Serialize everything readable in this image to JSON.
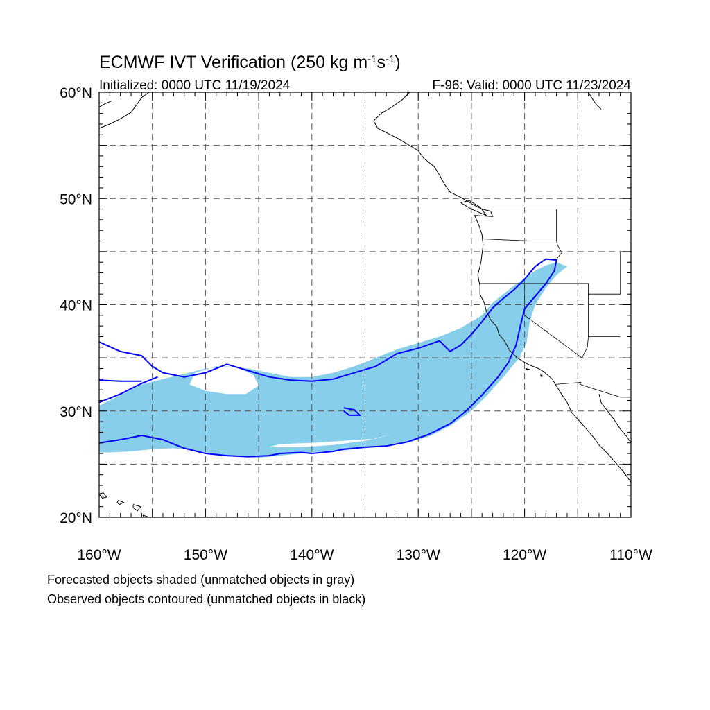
{
  "title": {
    "main": "ECMWF IVT Verification (250 kg m",
    "exp1": "-1",
    "mid": "s",
    "exp2": "-1",
    "close": ")"
  },
  "subtitle_left": "Initialized: 0000 UTC 11/19/2024",
  "subtitle_right": "F-96: Valid: 0000 UTC 11/23/2024",
  "lat_labels": [
    {
      "lat": 60,
      "text": "60°N"
    },
    {
      "lat": 50,
      "text": "50°N"
    },
    {
      "lat": 40,
      "text": "40°N"
    },
    {
      "lat": 30,
      "text": "30°N"
    },
    {
      "lat": 20,
      "text": "20°N"
    }
  ],
  "lon_labels": [
    {
      "lon": -160,
      "text": "160°W"
    },
    {
      "lon": -150,
      "text": "150°W"
    },
    {
      "lon": -140,
      "text": "140°W"
    },
    {
      "lon": -130,
      "text": "130°W"
    },
    {
      "lon": -120,
      "text": "120°W"
    },
    {
      "lon": -110,
      "text": "110°W"
    }
  ],
  "extent": {
    "lon_min": -160,
    "lon_max": -110,
    "lat_min": 20,
    "lat_max": 60
  },
  "grid_spacing_deg": 5,
  "colors": {
    "forecast_fill": "#87ceeb",
    "observed_contour": "#0000ff",
    "coastline": "#000000",
    "gridline": "#555555"
  },
  "legend_lines": [
    "Forecasted objects shaded (unmatched objects in gray)",
    "Observed objects contoured (unmatched objects in black)"
  ],
  "forecast_object": {
    "outer": [
      [
        -160,
        30.5
      ],
      [
        -158,
        31.5
      ],
      [
        -156,
        32.5
      ],
      [
        -154,
        33
      ],
      [
        -152,
        33.5
      ],
      [
        -150,
        34
      ],
      [
        -148,
        34.2
      ],
      [
        -146,
        34
      ],
      [
        -144,
        33.6
      ],
      [
        -142,
        33.2
      ],
      [
        -140,
        33.2
      ],
      [
        -138,
        33.6
      ],
      [
        -136,
        34.2
      ],
      [
        -134,
        35
      ],
      [
        -132,
        35.8
      ],
      [
        -130,
        36.4
      ],
      [
        -128,
        37
      ],
      [
        -126,
        37.8
      ],
      [
        -124,
        39
      ],
      [
        -123,
        40.2
      ],
      [
        -122,
        41
      ],
      [
        -121,
        41.8
      ],
      [
        -120,
        42.5
      ],
      [
        -119,
        43.2
      ],
      [
        -118,
        43.7
      ],
      [
        -117,
        44
      ],
      [
        -116,
        43.6
      ],
      [
        -117,
        42.8
      ],
      [
        -118,
        41.6
      ],
      [
        -119,
        40
      ],
      [
        -119.5,
        38.5
      ],
      [
        -119.8,
        36.5
      ],
      [
        -120.5,
        35
      ],
      [
        -122,
        33.2
      ],
      [
        -123.5,
        31.5
      ],
      [
        -125,
        30
      ],
      [
        -127,
        28.6
      ],
      [
        -129,
        27.6
      ],
      [
        -131,
        27
      ],
      [
        -133,
        26.7
      ],
      [
        -135,
        26.5
      ],
      [
        -137,
        26.3
      ],
      [
        -139,
        26.2
      ],
      [
        -141,
        26
      ],
      [
        -143,
        25.8
      ],
      [
        -145,
        25.6
      ],
      [
        -147,
        25.7
      ],
      [
        -149,
        25.9
      ],
      [
        -151,
        26.3
      ],
      [
        -153,
        26.5
      ],
      [
        -155,
        26.4
      ],
      [
        -157,
        26.2
      ],
      [
        -159,
        26.1
      ],
      [
        -160,
        26.1
      ]
    ],
    "holes": [
      [
        [
          -151,
          33.6
        ],
        [
          -149,
          34.2
        ],
        [
          -147,
          34.1
        ],
        [
          -145.5,
          33.4
        ],
        [
          -145,
          32.4
        ],
        [
          -146.2,
          31.6
        ],
        [
          -148,
          31.6
        ],
        [
          -150,
          31.9
        ],
        [
          -151.5,
          32.5
        ]
      ],
      [
        [
          -144,
          26.6
        ],
        [
          -141,
          26.6
        ],
        [
          -138,
          26.8
        ],
        [
          -135,
          27.2
        ],
        [
          -132.5,
          27.8
        ],
        [
          -134,
          27.4
        ],
        [
          -137,
          27.2
        ],
        [
          -140,
          27
        ],
        [
          -143,
          26.9
        ]
      ]
    ]
  },
  "observed_contours": [
    [
      [
        -160,
        36.5
      ],
      [
        -158,
        35.6
      ],
      [
        -156,
        35.2
      ],
      [
        -155,
        34.2
      ],
      [
        -154,
        33.6
      ],
      [
        -152,
        33.2
      ],
      [
        -150,
        33.6
      ],
      [
        -148,
        34.4
      ],
      [
        -146,
        33.8
      ],
      [
        -144,
        33.2
      ],
      [
        -142,
        32.9
      ],
      [
        -140,
        32.8
      ],
      [
        -138,
        33
      ],
      [
        -136,
        33.6
      ],
      [
        -134,
        34.2
      ],
      [
        -132,
        35.4
      ],
      [
        -130,
        35.9
      ],
      [
        -128,
        36.6
      ],
      [
        -127,
        35.6
      ],
      [
        -126,
        36.2
      ],
      [
        -125,
        37.2
      ],
      [
        -124,
        38.4
      ],
      [
        -123,
        39.7
      ],
      [
        -122,
        40.6
      ],
      [
        -121,
        41.4
      ],
      [
        -120,
        42.4
      ],
      [
        -119,
        43.6
      ],
      [
        -118,
        44.3
      ],
      [
        -117,
        44.2
      ],
      [
        -117.2,
        43.2
      ],
      [
        -118,
        42
      ],
      [
        -119,
        40.8
      ],
      [
        -120,
        39.6
      ],
      [
        -120.4,
        38
      ],
      [
        -120.8,
        36.2
      ],
      [
        -121.5,
        34.6
      ],
      [
        -122.5,
        33.2
      ],
      [
        -124,
        31.5
      ],
      [
        -125.5,
        30
      ],
      [
        -127,
        28.8
      ],
      [
        -129,
        27.8
      ],
      [
        -131,
        27.1
      ],
      [
        -133,
        26.7
      ],
      [
        -135,
        26.6
      ],
      [
        -137,
        26.4
      ],
      [
        -138,
        26.2
      ],
      [
        -139,
        26.1
      ],
      [
        -140,
        26
      ],
      [
        -141,
        26.1
      ],
      [
        -143,
        26
      ],
      [
        -144,
        25.8
      ],
      [
        -146,
        25.7
      ],
      [
        -148,
        25.8
      ],
      [
        -150,
        26
      ],
      [
        -152,
        26.5
      ],
      [
        -154,
        27.3
      ],
      [
        -156,
        27.7
      ],
      [
        -158,
        27.3
      ],
      [
        -160,
        27
      ]
    ],
    [
      [
        -160,
        30.8
      ],
      [
        -158,
        31.6
      ],
      [
        -156,
        32.6
      ],
      [
        -154.5,
        33.2
      ]
    ],
    [
      [
        -160,
        32.9
      ],
      [
        -158,
        32.8
      ],
      [
        -156,
        32.8
      ]
    ],
    [
      [
        -137,
        30.3
      ],
      [
        -136,
        30.1
      ],
      [
        -135.5,
        29.6
      ],
      [
        -136.5,
        29.6
      ],
      [
        -137,
        30
      ]
    ]
  ],
  "coastlines": [
    [
      [
        -130.8,
        60
      ],
      [
        -131.5,
        59.3
      ],
      [
        -132.5,
        58.6
      ],
      [
        -133.5,
        58
      ],
      [
        -134.2,
        57.3
      ],
      [
        -133.8,
        56.6
      ],
      [
        -132,
        55.7
      ],
      [
        -131,
        55.1
      ],
      [
        -130,
        54.5
      ],
      [
        -129.5,
        53.8
      ],
      [
        -128.5,
        53
      ],
      [
        -128,
        52.2
      ],
      [
        -127.5,
        51.3
      ],
      [
        -127,
        50.6
      ],
      [
        -126,
        50.1
      ],
      [
        -124.8,
        49.4
      ],
      [
        -124,
        49
      ],
      [
        -123.2,
        48.8
      ],
      [
        -123,
        48.3
      ],
      [
        -124.7,
        48.4
      ],
      [
        -124.3,
        47.5
      ],
      [
        -124,
        46.6
      ],
      [
        -123.9,
        45.6
      ],
      [
        -124,
        44.8
      ],
      [
        -124.1,
        44
      ],
      [
        -124.4,
        42.8
      ],
      [
        -124.2,
        41.8
      ],
      [
        -124.2,
        41
      ],
      [
        -123.8,
        40.2
      ],
      [
        -123.6,
        39.4
      ],
      [
        -123.2,
        38.6
      ],
      [
        -122.6,
        37.9
      ],
      [
        -122.4,
        37.2
      ],
      [
        -121.9,
        36.6
      ],
      [
        -121.4,
        35.7
      ],
      [
        -120.7,
        35
      ],
      [
        -119.7,
        34.4
      ],
      [
        -118.7,
        34
      ],
      [
        -118.2,
        33.7
      ],
      [
        -117.4,
        33
      ],
      [
        -117.1,
        32.5
      ],
      [
        -116.6,
        31.7
      ],
      [
        -116,
        30.8
      ],
      [
        -115.6,
        29.9
      ],
      [
        -114.8,
        29
      ],
      [
        -114.2,
        28.3
      ],
      [
        -113.5,
        27.5
      ],
      [
        -113,
        26.8
      ],
      [
        -112.2,
        26
      ],
      [
        -111.5,
        25.2
      ],
      [
        -110.8,
        24.4
      ],
      [
        -110,
        23.3
      ]
    ],
    [
      [
        -113,
        31.6
      ],
      [
        -112.8,
        30.8
      ],
      [
        -112.2,
        30
      ],
      [
        -111.6,
        29.2
      ],
      [
        -111,
        28.3
      ],
      [
        -110.4,
        27.6
      ],
      [
        -110,
        27
      ]
    ],
    [
      [
        -160,
        56.6
      ],
      [
        -159,
        57
      ],
      [
        -158,
        57.5
      ],
      [
        -157,
        58.1
      ],
      [
        -156.5,
        58.8
      ],
      [
        -156,
        59.5
      ],
      [
        -155.3,
        60
      ]
    ],
    [
      [
        -160,
        58.6
      ],
      [
        -159.5,
        58.9
      ],
      [
        -158.8,
        59.2
      ]
    ],
    [
      [
        -114,
        60
      ],
      [
        -113.7,
        59.5
      ],
      [
        -113.3,
        58.9
      ],
      [
        -112.8,
        58.4
      ]
    ],
    [
      [
        -160,
        22.2
      ],
      [
        -159.6,
        22.3
      ],
      [
        -159.3,
        21.9
      ],
      [
        -159.7,
        21.8
      ],
      [
        -160,
        22.2
      ]
    ],
    [
      [
        -158.2,
        21.6
      ],
      [
        -157.7,
        21.4
      ],
      [
        -158.1,
        21.2
      ],
      [
        -158.3,
        21.4
      ],
      [
        -158.2,
        21.6
      ]
    ],
    [
      [
        -156.8,
        21.2
      ],
      [
        -156.1,
        21
      ],
      [
        -156.4,
        20.6
      ],
      [
        -156.8,
        20.9
      ],
      [
        -156.8,
        21.2
      ]
    ],
    [
      [
        -155.9,
        20.2
      ],
      [
        -155,
        19.9
      ],
      [
        -155.5,
        19.5
      ],
      [
        -155.9,
        20.2
      ]
    ],
    [
      [
        -126,
        49.6
      ],
      [
        -125,
        49
      ],
      [
        -123.6,
        48.4
      ],
      [
        -124.2,
        49.2
      ],
      [
        -125.2,
        49.8
      ],
      [
        -126,
        49.6
      ]
    ],
    [
      [
        -119.9,
        34
      ],
      [
        -119.5,
        33.9
      ],
      [
        -119.8,
        33.9
      ],
      [
        -119.9,
        34
      ]
    ],
    [
      [
        -118.5,
        33.4
      ],
      [
        -118.3,
        33.3
      ],
      [
        -118.4,
        33.2
      ],
      [
        -118.5,
        33.4
      ]
    ]
  ],
  "borders": [
    [
      [
        -124.2,
        42
      ],
      [
        -120,
        42
      ],
      [
        -117,
        42
      ],
      [
        -114,
        42
      ]
    ],
    [
      [
        -124,
        46.2
      ],
      [
        -119.5,
        46
      ],
      [
        -117,
        46
      ],
      [
        -116.9,
        45.6
      ],
      [
        -116.5,
        44.9
      ],
      [
        -117,
        44.3
      ]
    ],
    [
      [
        -123.2,
        49
      ],
      [
        -110,
        49
      ]
    ],
    [
      [
        -120,
        42
      ],
      [
        -120,
        39
      ],
      [
        -114.6,
        35
      ],
      [
        -114.6,
        34
      ]
    ],
    [
      [
        -117.1,
        32.5
      ],
      [
        -114.7,
        32.7
      ],
      [
        -114.8,
        32.5
      ],
      [
        -111,
        31.3
      ],
      [
        -110,
        31.3
      ]
    ],
    [
      [
        -114.6,
        35
      ],
      [
        -114.1,
        36
      ],
      [
        -114,
        37
      ],
      [
        -114,
        42
      ]
    ],
    [
      [
        -117,
        49
      ],
      [
        -117,
        46
      ]
    ],
    [
      [
        -111,
        45
      ],
      [
        -111,
        41
      ],
      [
        -114,
        41
      ]
    ],
    [
      [
        -111,
        37
      ],
      [
        -114,
        37
      ]
    ]
  ]
}
